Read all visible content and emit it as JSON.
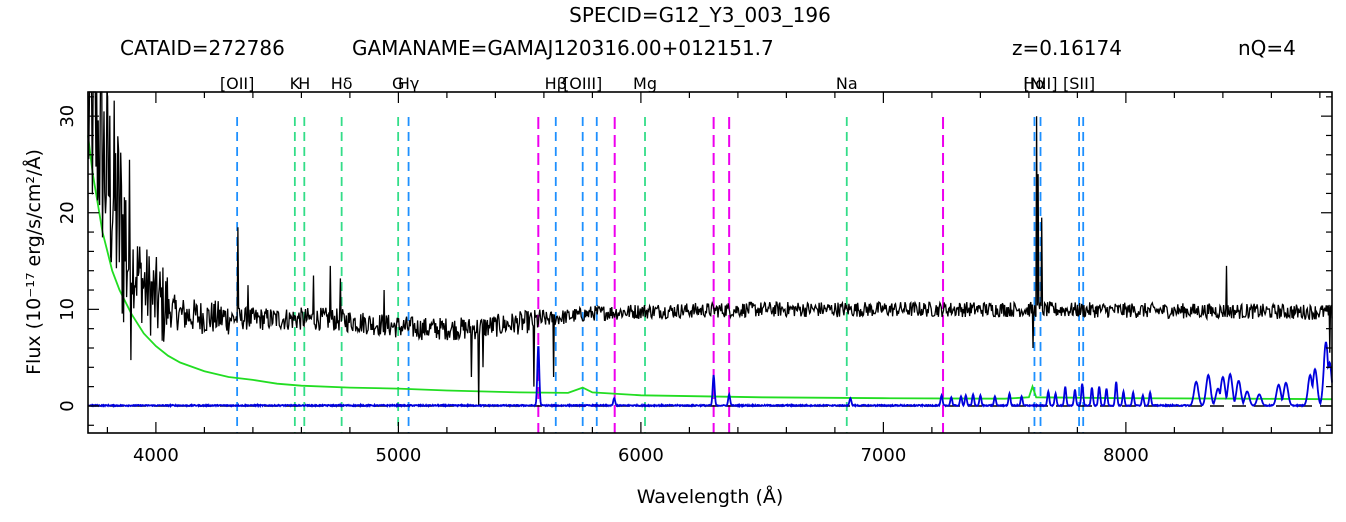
{
  "header": {
    "specid": "SPECID=G12_Y3_003_196",
    "cataid": "CATAID=272786",
    "gamaname": "GAMANAME=GAMAJ120316.00+012151.7",
    "redshift": "z=0.16174",
    "quality": "nQ=4"
  },
  "chart_data": {
    "type": "line",
    "xlabel": "Wavelength (Å)",
    "ylabel": "Flux (10⁻¹⁷ erg/s/cm²/Å)",
    "xlim": [
      3720,
      8850
    ],
    "ylim": [
      -2.8,
      32.5
    ],
    "x_ticks": [
      4000,
      5000,
      6000,
      7000,
      8000
    ],
    "y_ticks": [
      0,
      10,
      20,
      30
    ],
    "grid": false,
    "legend": "none",
    "series": [
      {
        "role": "spectrum",
        "color": "#000000",
        "baseline": [
          [
            3720,
            30
          ],
          [
            3760,
            28
          ],
          [
            3800,
            24
          ],
          [
            3850,
            19
          ],
          [
            3900,
            15
          ],
          [
            3950,
            12.5
          ],
          [
            4000,
            11
          ],
          [
            4050,
            10
          ],
          [
            4100,
            9.5
          ],
          [
            4200,
            9.2
          ],
          [
            4400,
            9
          ],
          [
            4700,
            9
          ],
          [
            4800,
            8.8
          ],
          [
            5000,
            8.2
          ],
          [
            5100,
            8
          ],
          [
            5300,
            8
          ],
          [
            5500,
            8.6
          ],
          [
            5800,
            9.6
          ],
          [
            6000,
            9.8
          ],
          [
            6500,
            10
          ],
          [
            7000,
            10
          ],
          [
            7500,
            10
          ],
          [
            8000,
            9.9
          ],
          [
            8500,
            9.8
          ],
          [
            8850,
            9.7
          ]
        ],
        "features": [
          [
            4338,
            18.5
          ],
          [
            4720,
            14.5
          ],
          [
            4650,
            13.5
          ],
          [
            4380,
            12.5
          ],
          [
            4760,
            13.2
          ],
          [
            4940,
            12
          ],
          [
            5300,
            3
          ],
          [
            5330,
            0
          ],
          [
            5350,
            4
          ],
          [
            5560,
            2
          ],
          [
            5640,
            3
          ],
          [
            7632,
            30
          ],
          [
            7638,
            24
          ],
          [
            7653,
            19.5
          ],
          [
            7618,
            6
          ],
          [
            8415,
            14.5
          ],
          [
            8840,
            5.5
          ]
        ]
      },
      {
        "role": "sky_error",
        "color": "#22dd22",
        "values": [
          [
            3720,
            28
          ],
          [
            3740,
            24
          ],
          [
            3760,
            21
          ],
          [
            3780,
            18
          ],
          [
            3800,
            16
          ],
          [
            3820,
            14
          ],
          [
            3850,
            12
          ],
          [
            3900,
            9.5
          ],
          [
            3950,
            7.5
          ],
          [
            4000,
            6.2
          ],
          [
            4050,
            5.2
          ],
          [
            4100,
            4.5
          ],
          [
            4200,
            3.6
          ],
          [
            4300,
            3
          ],
          [
            4400,
            2.7
          ],
          [
            4500,
            2.3
          ],
          [
            4600,
            2.1
          ],
          [
            4800,
            1.9
          ],
          [
            5000,
            1.8
          ],
          [
            5200,
            1.6
          ],
          [
            5500,
            1.4
          ],
          [
            5700,
            1.35
          ],
          [
            5760,
            1.9
          ],
          [
            5800,
            1.4
          ],
          [
            6000,
            1.1
          ],
          [
            6500,
            0.9
          ],
          [
            7000,
            0.8
          ],
          [
            7500,
            0.75
          ],
          [
            7600,
            0.9
          ],
          [
            7615,
            2
          ],
          [
            7630,
            0.9
          ],
          [
            8000,
            0.8
          ],
          [
            8500,
            0.75
          ],
          [
            8850,
            0.7
          ]
        ]
      },
      {
        "role": "sky_emission",
        "color": "#0000dd",
        "spikes": [
          [
            5577,
            6.3
          ],
          [
            6300,
            3.2
          ],
          [
            6364,
            1.2
          ],
          [
            5890,
            0.8
          ],
          [
            6864,
            0.8
          ],
          [
            7240,
            1.1
          ],
          [
            7280,
            0.9
          ],
          [
            7320,
            1
          ],
          [
            7340,
            1.1
          ],
          [
            7370,
            1.2
          ],
          [
            7400,
            1.1
          ],
          [
            7460,
            1
          ],
          [
            7520,
            1.3
          ],
          [
            7570,
            1
          ],
          [
            7680,
            1.5
          ],
          [
            7710,
            1.3
          ],
          [
            7750,
            2
          ],
          [
            7790,
            1.7
          ],
          [
            7820,
            2.3
          ],
          [
            7860,
            1.9
          ],
          [
            7890,
            2
          ],
          [
            7920,
            1.8
          ],
          [
            7960,
            2.5
          ],
          [
            7990,
            1.5
          ],
          [
            8030,
            1.4
          ],
          [
            8070,
            1.1
          ],
          [
            8100,
            1.4
          ],
          [
            8290,
            2.5
          ],
          [
            8340,
            3.2
          ],
          [
            8380,
            1.8
          ],
          [
            8400,
            3
          ],
          [
            8430,
            3.3
          ],
          [
            8465,
            2.6
          ],
          [
            8500,
            1.5
          ],
          [
            8550,
            1.2
          ],
          [
            8630,
            2.2
          ],
          [
            8660,
            2.4
          ],
          [
            8760,
            3.2
          ],
          [
            8780,
            3.8
          ],
          [
            8825,
            6.6
          ],
          [
            8840,
            4.5
          ]
        ]
      }
    ],
    "zero_line": {
      "y": 0,
      "color": "#000000",
      "style": "dashed"
    },
    "line_markers": [
      {
        "label": "[OII]",
        "x": 4335,
        "color": "#1e90ff"
      },
      {
        "label": "K",
        "x": 4573,
        "color": "#33dd88"
      },
      {
        "label": "H",
        "x": 4612,
        "color": "#33dd88"
      },
      {
        "label": "Hδ",
        "x": 4766,
        "color": "#33dd88"
      },
      {
        "label": "G",
        "x": 4999,
        "color": "#33dd88"
      },
      {
        "label": "Hγ",
        "x": 5042,
        "color": "#1e90ff"
      },
      {
        "label": "Hβ",
        "x": 5649,
        "color": "#1e90ff"
      },
      {
        "label": "[OIII]",
        "x": 5760,
        "color": "#1e90ff"
      },
      {
        "label": "",
        "x": 5818,
        "color": "#1e90ff"
      },
      {
        "label": "Mg",
        "x": 6017,
        "color": "#33dd88"
      },
      {
        "label": "Na",
        "x": 6849,
        "color": "#33dd88"
      },
      {
        "label": "Hα",
        "x": 7623,
        "color": "#1e90ff"
      },
      {
        "label": "[NII]",
        "x": 7648,
        "color": "#1e90ff"
      },
      {
        "label": "[SII]",
        "x": 7807,
        "color": "#1e90ff"
      },
      {
        "label": "",
        "x": 7824,
        "color": "#1e90ff"
      }
    ],
    "sky_line_markers": [
      {
        "x": 5577,
        "color": "#ee00ee"
      },
      {
        "x": 5892,
        "color": "#ee00ee"
      },
      {
        "x": 6300,
        "color": "#ee00ee"
      },
      {
        "x": 6364,
        "color": "#ee00ee"
      },
      {
        "x": 7246,
        "color": "#ee00ee"
      }
    ]
  }
}
